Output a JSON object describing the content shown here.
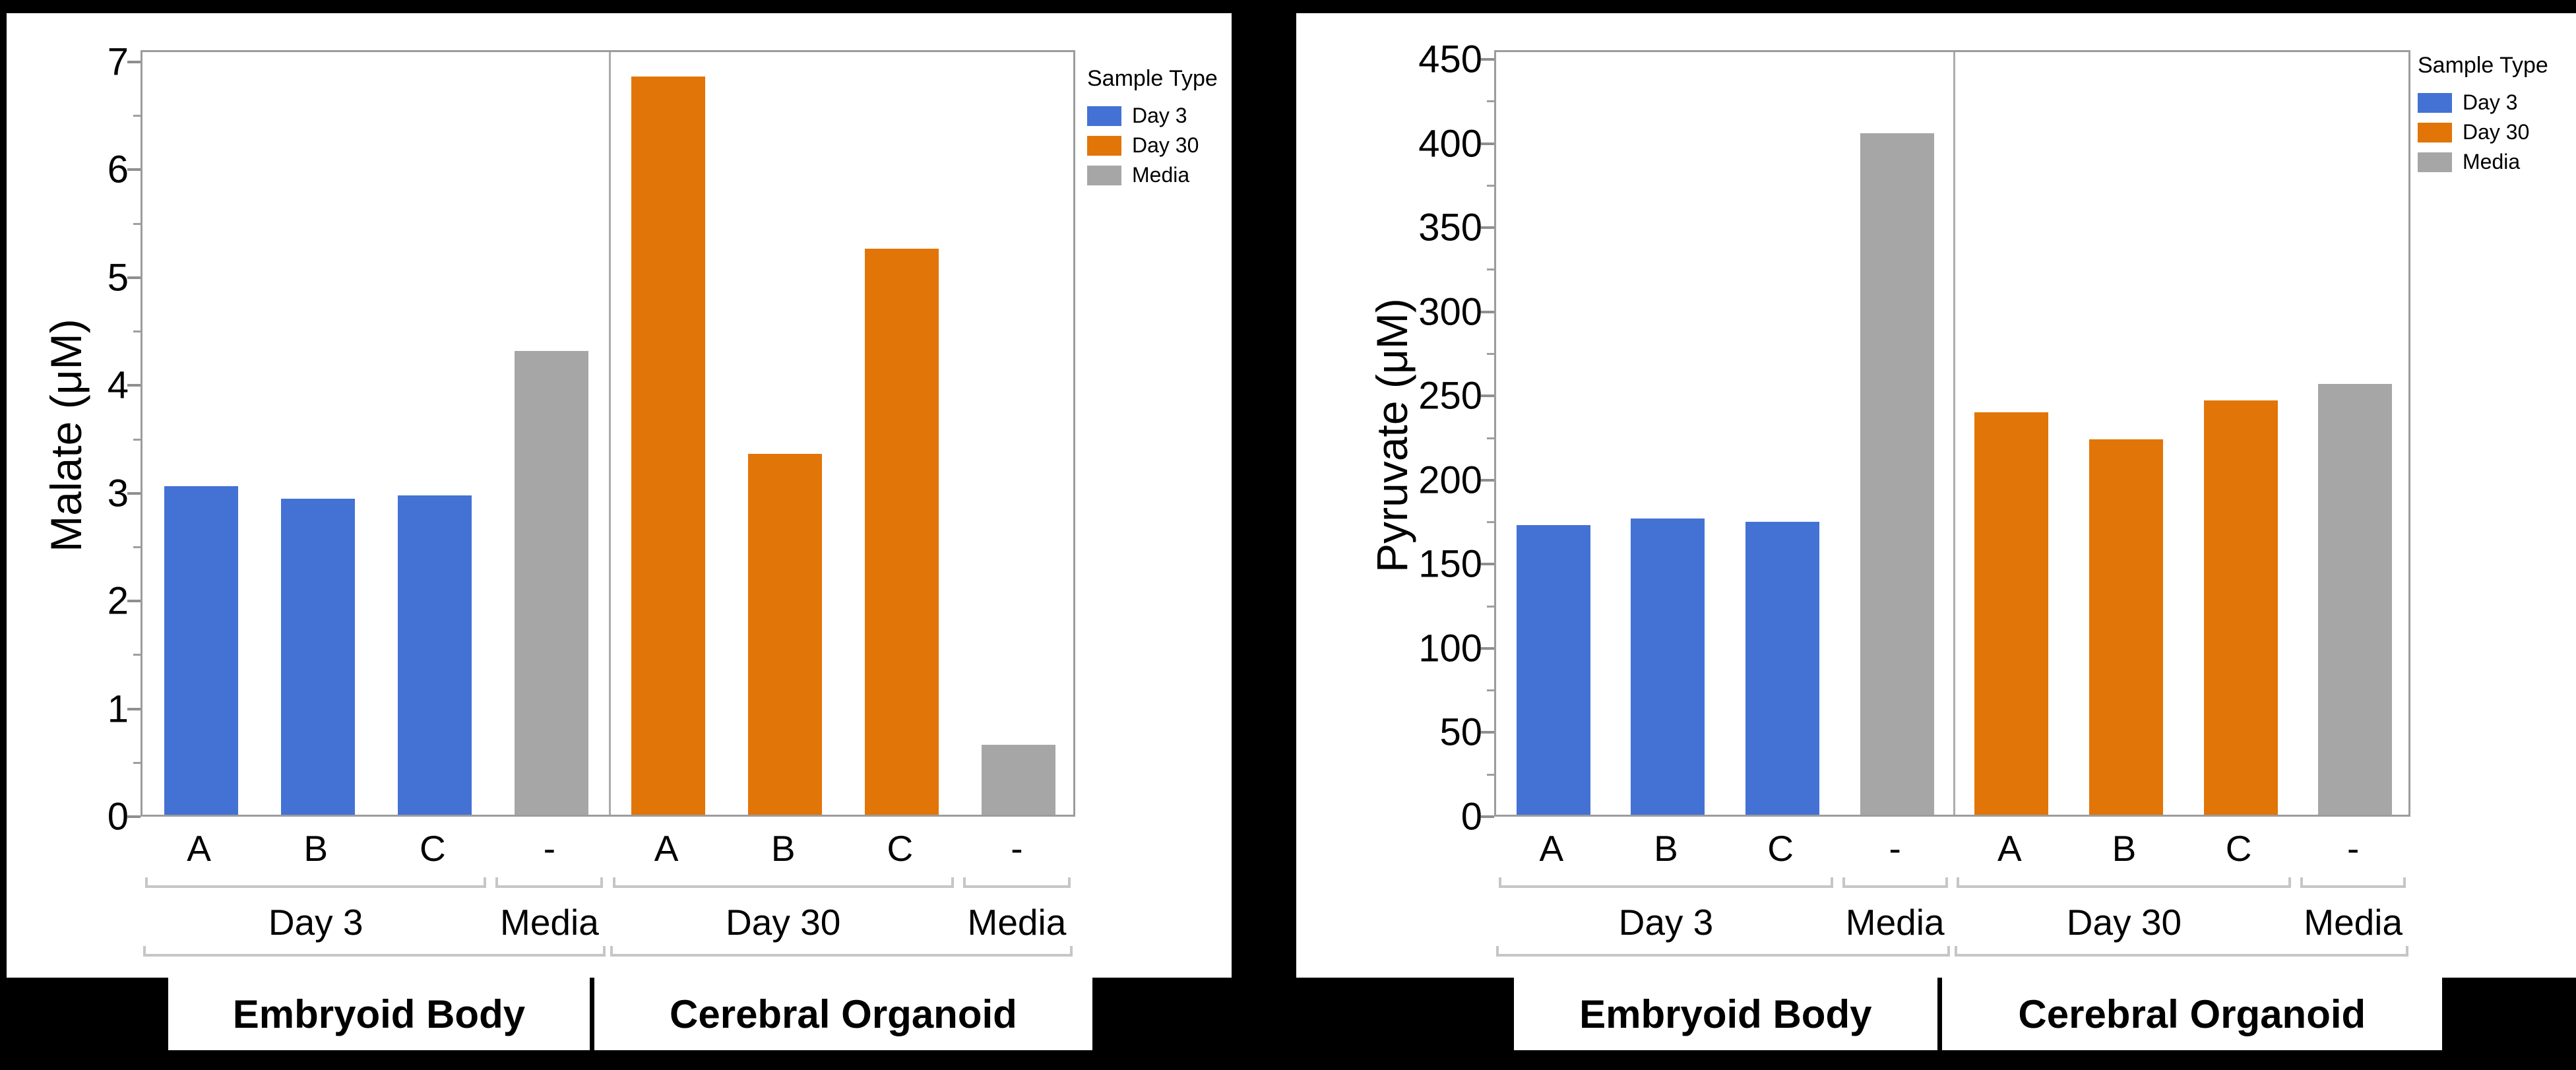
{
  "background_color": "#000000",
  "legend": {
    "title": "Sample Type",
    "items": [
      {
        "label": "Day 3",
        "color": "#4372D4"
      },
      {
        "label": "Day 30",
        "color": "#E27508"
      },
      {
        "label": "Media",
        "color": "#A6A6A6"
      }
    ]
  },
  "chart_data": [
    {
      "type": "bar",
      "ylabel": "Malate (μM)",
      "ylim": [
        0,
        7
      ],
      "yticks": [
        "0",
        "1",
        "2",
        "3",
        "4",
        "5",
        "6",
        "7"
      ],
      "ytick_values": [
        0,
        1,
        2,
        3,
        4,
        5,
        6,
        7
      ],
      "ytick_minor_values": [
        0.5,
        1.5,
        2.5,
        3.5,
        4.5,
        5.5,
        6.5
      ],
      "categories": [
        "A",
        "B",
        "C",
        "-",
        "A",
        "B",
        "C",
        "-"
      ],
      "series_by_bar": [
        "Day 3",
        "Day 3",
        "Day 3",
        "Media",
        "Day 30",
        "Day 30",
        "Day 30",
        "Media"
      ],
      "values": [
        3.05,
        2.93,
        2.96,
        4.3,
        6.85,
        3.35,
        5.25,
        0.65
      ],
      "groups": [
        {
          "label": "Day 3",
          "first": 0,
          "last": 2
        },
        {
          "label": "Media",
          "first": 3,
          "last": 3
        },
        {
          "label": "Day 30",
          "first": 4,
          "last": 6
        },
        {
          "label": "Media",
          "first": 7,
          "last": 7
        }
      ],
      "super_groups": [
        {
          "label": "Embryoid Body",
          "first": 0,
          "last": 3
        },
        {
          "label": "Cerebral Organoid",
          "first": 4,
          "last": 7
        }
      ],
      "divider_after_bar": 3,
      "grid": false,
      "legend_position": "outside-top-right"
    },
    {
      "type": "bar",
      "ylabel": "Pyruvate (μM)",
      "ylim": [
        0,
        450
      ],
      "yticks": [
        "0",
        "50",
        "100",
        "150",
        "200",
        "250",
        "300",
        "350",
        "400",
        "450"
      ],
      "ytick_values": [
        0,
        50,
        100,
        150,
        200,
        250,
        300,
        350,
        400,
        450
      ],
      "ytick_minor_values": [
        25,
        75,
        125,
        175,
        225,
        275,
        325,
        375,
        425
      ],
      "categories": [
        "A",
        "B",
        "C",
        "-",
        "A",
        "B",
        "C",
        "-"
      ],
      "series_by_bar": [
        "Day 3",
        "Day 3",
        "Day 3",
        "Media",
        "Day 30",
        "Day 30",
        "Day 30",
        "Media"
      ],
      "values": [
        172,
        176,
        174,
        405,
        239,
        223,
        246,
        256
      ],
      "groups": [
        {
          "label": "Day 3",
          "first": 0,
          "last": 2
        },
        {
          "label": "Media",
          "first": 3,
          "last": 3
        },
        {
          "label": "Day 30",
          "first": 4,
          "last": 6
        },
        {
          "label": "Media",
          "first": 7,
          "last": 7
        }
      ],
      "super_groups": [
        {
          "label": "Embryoid Body",
          "first": 0,
          "last": 3
        },
        {
          "label": "Cerebral Organoid",
          "first": 4,
          "last": 7
        }
      ],
      "divider_after_bar": 3,
      "grid": false,
      "legend_position": "outside-top-right"
    }
  ]
}
